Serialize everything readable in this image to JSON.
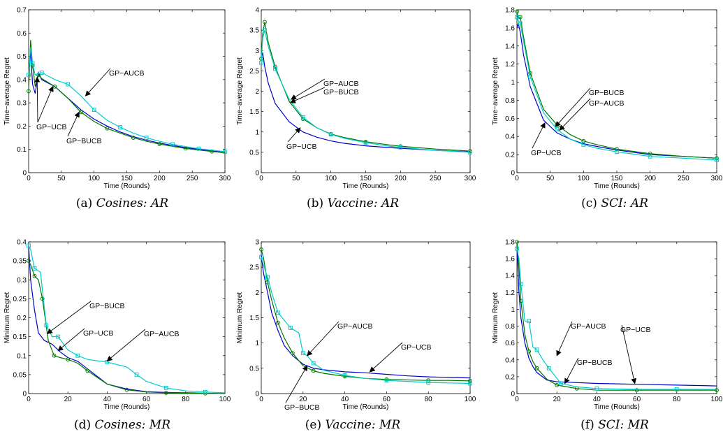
{
  "chart_data": [
    {
      "type": "line",
      "caption": {
        "label": "(a)",
        "title": "Cosines: AR"
      },
      "xlabel": "Time (Rounds)",
      "ylabel": "Time−average Regret",
      "xlim": [
        0,
        300
      ],
      "ylim": [
        0,
        0.7
      ],
      "xticks": [
        0,
        50,
        100,
        150,
        200,
        250,
        300
      ],
      "yticks": [
        0,
        0.1,
        0.2,
        0.3,
        0.4,
        0.5,
        0.6,
        0.7
      ],
      "series": [
        {
          "name": "GP−UCB",
          "color": "#0000cc",
          "marker": "none",
          "x": [
            0,
            3,
            6,
            10,
            15,
            20,
            40,
            60,
            80,
            100,
            120,
            140,
            160,
            180,
            200,
            220,
            240,
            260,
            280,
            300
          ],
          "y": [
            0.42,
            0.52,
            0.38,
            0.34,
            0.43,
            0.4,
            0.37,
            0.32,
            0.27,
            0.23,
            0.2,
            0.175,
            0.155,
            0.14,
            0.127,
            0.117,
            0.108,
            0.1,
            0.093,
            0.087
          ]
        },
        {
          "name": "GP−BUCB",
          "color": "#007700",
          "marker": "circle",
          "x": [
            0,
            3,
            6,
            10,
            15,
            20,
            40,
            60,
            80,
            100,
            120,
            140,
            160,
            180,
            200,
            220,
            240,
            260,
            280,
            300
          ],
          "y": [
            0.35,
            0.57,
            0.46,
            0.37,
            0.42,
            0.405,
            0.37,
            0.32,
            0.26,
            0.22,
            0.19,
            0.17,
            0.15,
            0.135,
            0.123,
            0.113,
            0.104,
            0.097,
            0.091,
            0.085
          ]
        },
        {
          "name": "GP−AUCB",
          "color": "#00cccc",
          "marker": "square",
          "x": [
            0,
            3,
            6,
            10,
            20,
            40,
            60,
            80,
            100,
            120,
            140,
            160,
            180,
            200,
            220,
            240,
            260,
            280,
            300
          ],
          "y": [
            0.42,
            0.54,
            0.47,
            0.42,
            0.43,
            0.4,
            0.38,
            0.33,
            0.27,
            0.225,
            0.195,
            0.17,
            0.15,
            0.135,
            0.122,
            0.112,
            0.103,
            0.097,
            0.09
          ]
        }
      ],
      "annotations": [
        {
          "text": "GP−AUCB",
          "target": [
            87,
            0.33
          ]
        },
        {
          "text": "GP−UCB",
          "target": [
            13,
            0.41
          ]
        },
        {
          "text": "GP−UCB",
          "target": [
            37,
            0.37
          ]
        },
        {
          "text": "GP−BUCB",
          "target": [
            77,
            0.26
          ]
        }
      ]
    },
    {
      "type": "line",
      "caption": {
        "label": "(b)",
        "title": "Vaccine: AR"
      },
      "xlabel": "Time (Rounds)",
      "ylabel": "Time−average Regret",
      "xlim": [
        0,
        300
      ],
      "ylim": [
        0,
        4
      ],
      "xticks": [
        0,
        50,
        100,
        150,
        200,
        250,
        300
      ],
      "yticks": [
        0,
        0.5,
        1,
        1.5,
        2,
        2.5,
        3,
        3.5,
        4
      ],
      "series": [
        {
          "name": "GP−UCB",
          "color": "#0000cc",
          "marker": "none",
          "x": [
            0,
            2,
            5,
            10,
            20,
            40,
            60,
            80,
            100,
            120,
            150,
            180,
            200,
            250,
            300
          ],
          "y": [
            2.8,
            2.95,
            2.6,
            2.2,
            1.7,
            1.25,
            1.0,
            0.87,
            0.78,
            0.72,
            0.66,
            0.62,
            0.6,
            0.55,
            0.51
          ]
        },
        {
          "name": "GP−BUCB",
          "color": "#007700",
          "marker": "circle",
          "x": [
            0,
            2,
            5,
            10,
            20,
            40,
            60,
            80,
            100,
            120,
            150,
            180,
            200,
            250,
            300
          ],
          "y": [
            2.8,
            3.4,
            3.7,
            3.2,
            2.6,
            1.75,
            1.32,
            1.1,
            0.95,
            0.86,
            0.76,
            0.69,
            0.65,
            0.58,
            0.53
          ]
        },
        {
          "name": "GP−AUCB",
          "color": "#00cccc",
          "marker": "square",
          "x": [
            0,
            2,
            5,
            10,
            20,
            40,
            60,
            80,
            100,
            120,
            150,
            180,
            200,
            250,
            300
          ],
          "y": [
            2.7,
            3.3,
            3.5,
            3.1,
            2.55,
            1.8,
            1.36,
            1.1,
            0.94,
            0.84,
            0.74,
            0.66,
            0.62,
            0.55,
            0.5
          ]
        }
      ],
      "annotations": [
        {
          "text": "GP−AUCB",
          "target": [
            43,
            1.8
          ]
        },
        {
          "text": "GP−BUCB",
          "target": [
            42,
            1.72
          ]
        },
        {
          "text": "GP−UCB",
          "target": [
            56,
            1.1
          ]
        }
      ]
    },
    {
      "type": "line",
      "caption": {
        "label": "(c)",
        "title": "SCI: AR"
      },
      "xlabel": "Time (Rounds)",
      "ylabel": "Time−average Regret",
      "xlim": [
        0,
        300
      ],
      "ylim": [
        0,
        1.8
      ],
      "xticks": [
        0,
        50,
        100,
        150,
        200,
        250,
        300
      ],
      "yticks": [
        0,
        0.2,
        0.4,
        0.6,
        0.8,
        1,
        1.2,
        1.4,
        1.6,
        1.8
      ],
      "series": [
        {
          "name": "GP−UCB",
          "color": "#0000cc",
          "marker": "none",
          "x": [
            0,
            2,
            5,
            10,
            20,
            40,
            60,
            80,
            100,
            120,
            150,
            180,
            200,
            250,
            300
          ],
          "y": [
            1.6,
            1.65,
            1.55,
            1.3,
            0.95,
            0.58,
            0.44,
            0.37,
            0.32,
            0.29,
            0.25,
            0.22,
            0.2,
            0.18,
            0.16
          ]
        },
        {
          "name": "GP−BUCB",
          "color": "#007700",
          "marker": "circle",
          "x": [
            0,
            2,
            5,
            10,
            20,
            40,
            60,
            80,
            100,
            120,
            150,
            180,
            200,
            250,
            300
          ],
          "y": [
            1.78,
            1.7,
            1.72,
            1.5,
            1.1,
            0.7,
            0.53,
            0.42,
            0.35,
            0.31,
            0.26,
            0.23,
            0.21,
            0.18,
            0.16
          ]
        },
        {
          "name": "GP−AUCB",
          "color": "#00cccc",
          "marker": "square",
          "x": [
            0,
            2,
            5,
            10,
            20,
            40,
            60,
            80,
            100,
            120,
            150,
            180,
            200,
            250,
            300
          ],
          "y": [
            1.72,
            1.68,
            1.65,
            1.45,
            1.06,
            0.66,
            0.48,
            0.37,
            0.31,
            0.27,
            0.23,
            0.2,
            0.18,
            0.16,
            0.14
          ]
        }
      ],
      "annotations": [
        {
          "text": "GP−BUCB",
          "target": [
            58,
            0.51
          ]
        },
        {
          "text": "GP−AUCB",
          "target": [
            64,
            0.47
          ]
        },
        {
          "text": "GP−UCB",
          "target": [
            42,
            0.55
          ]
        }
      ]
    },
    {
      "type": "line",
      "caption": {
        "label": "(d)",
        "title": "Cosines: MR"
      },
      "xlabel": "Time (Rounds)",
      "ylabel": "Minimum Regret",
      "xlim": [
        0,
        100
      ],
      "ylim": [
        0,
        0.4
      ],
      "xticks": [
        0,
        20,
        40,
        60,
        80,
        100
      ],
      "yticks": [
        0,
        0.05,
        0.1,
        0.15,
        0.2,
        0.25,
        0.3,
        0.35,
        0.4
      ],
      "series": [
        {
          "name": "GP−UCB",
          "color": "#0000cc",
          "marker": "none",
          "x": [
            0,
            1,
            3,
            5,
            8,
            12,
            16,
            20,
            25,
            30,
            40,
            50,
            60,
            70,
            80,
            90,
            100
          ],
          "y": [
            0.39,
            0.3,
            0.22,
            0.16,
            0.14,
            0.13,
            0.11,
            0.095,
            0.085,
            0.065,
            0.025,
            0.012,
            0.005,
            0.003,
            0.002,
            0.001,
            0.0
          ]
        },
        {
          "name": "GP−BUCB",
          "color": "#007700",
          "marker": "circle",
          "x": [
            0,
            1,
            3,
            5,
            7,
            10,
            13,
            16,
            20,
            25,
            30,
            40,
            50,
            60,
            70,
            80,
            90,
            100
          ],
          "y": [
            0.35,
            0.34,
            0.31,
            0.3,
            0.25,
            0.14,
            0.1,
            0.095,
            0.09,
            0.08,
            0.06,
            0.025,
            0.01,
            0.004,
            0.002,
            0.001,
            0.0005,
            0.0
          ]
        },
        {
          "name": "GP−AUCB",
          "color": "#00cccc",
          "marker": "square",
          "x": [
            0,
            1,
            3,
            6,
            9,
            12,
            15,
            20,
            25,
            30,
            40,
            50,
            55,
            60,
            70,
            80,
            90,
            100
          ],
          "y": [
            0.39,
            0.38,
            0.33,
            0.32,
            0.18,
            0.15,
            0.15,
            0.115,
            0.1,
            0.09,
            0.083,
            0.07,
            0.05,
            0.032,
            0.015,
            0.007,
            0.004,
            0.002
          ]
        }
      ],
      "annotations": [
        {
          "text": "GP−BUCB",
          "target": [
            9.5,
            0.158
          ]
        },
        {
          "text": "GP−UCB",
          "target": [
            15,
            0.113
          ]
        },
        {
          "text": "GP−AUCB",
          "target": [
            40,
            0.086
          ]
        }
      ]
    },
    {
      "type": "line",
      "caption": {
        "label": "(e)",
        "title": "Vaccine: MR"
      },
      "xlabel": "Time (Rounds)",
      "ylabel": "Minimum Regret",
      "xlim": [
        0,
        100
      ],
      "ylim": [
        0,
        3
      ],
      "xticks": [
        0,
        20,
        40,
        60,
        80,
        100
      ],
      "yticks": [
        0,
        0.5,
        1,
        1.5,
        2,
        2.5,
        3
      ],
      "series": [
        {
          "name": "GP−UCB",
          "color": "#0000cc",
          "marker": "none",
          "x": [
            0,
            1,
            3,
            5,
            8,
            11,
            15,
            20,
            25,
            30,
            40,
            50,
            60,
            70,
            80,
            90,
            100
          ],
          "y": [
            2.75,
            2.4,
            2.0,
            1.6,
            1.25,
            0.95,
            0.75,
            0.58,
            0.5,
            0.47,
            0.43,
            0.41,
            0.38,
            0.35,
            0.33,
            0.32,
            0.31
          ]
        },
        {
          "name": "GP−BUCB",
          "color": "#007700",
          "marker": "circle",
          "x": [
            0,
            1,
            3,
            5,
            8,
            11,
            15,
            20,
            25,
            30,
            40,
            50,
            60,
            70,
            80,
            90,
            100
          ],
          "y": [
            2.85,
            2.7,
            2.2,
            1.85,
            1.4,
            1.1,
            0.8,
            0.55,
            0.45,
            0.4,
            0.34,
            0.3,
            0.28,
            0.27,
            0.26,
            0.26,
            0.25
          ]
        },
        {
          "name": "GP−AUCB",
          "color": "#00cccc",
          "marker": "square",
          "x": [
            0,
            1,
            3,
            5,
            8,
            11,
            14,
            18,
            20,
            22,
            25,
            30,
            40,
            50,
            60,
            70,
            80,
            90,
            100
          ],
          "y": [
            2.7,
            2.55,
            2.3,
            2.0,
            1.6,
            1.45,
            1.3,
            1.2,
            0.8,
            0.75,
            0.6,
            0.46,
            0.36,
            0.3,
            0.26,
            0.24,
            0.22,
            0.21,
            0.2
          ]
        }
      ],
      "annotations": [
        {
          "text": "GP−AUCB",
          "target": [
            22,
            0.75
          ]
        },
        {
          "text": "GP−UCB",
          "target": [
            52,
            0.43
          ]
        },
        {
          "text": "GP−BUCB",
          "target": [
            22,
            0.55
          ]
        }
      ]
    },
    {
      "type": "line",
      "caption": {
        "label": "(f)",
        "title": "SCI: MR"
      },
      "xlabel": "Time (Rounds)",
      "ylabel": "Minimum Regret",
      "xlim": [
        0,
        100
      ],
      "ylim": [
        0,
        1.8
      ],
      "xticks": [
        0,
        20,
        40,
        60,
        80,
        100
      ],
      "yticks": [
        0,
        0.2,
        0.4,
        0.6,
        0.8,
        1,
        1.2,
        1.4,
        1.6,
        1.8
      ],
      "series": [
        {
          "name": "GP−UCB",
          "color": "#0000cc",
          "marker": "none",
          "x": [
            0,
            1,
            2,
            4,
            6,
            8,
            10,
            15,
            20,
            30,
            40,
            60,
            80,
            100
          ],
          "y": [
            1.78,
            1.2,
            0.9,
            0.6,
            0.42,
            0.32,
            0.25,
            0.16,
            0.14,
            0.13,
            0.12,
            0.11,
            0.1,
            0.09
          ]
        },
        {
          "name": "GP−BUCB",
          "color": "#007700",
          "marker": "circle",
          "x": [
            0,
            1,
            2,
            4,
            6,
            8,
            10,
            15,
            20,
            25,
            30,
            40,
            60,
            80,
            100
          ],
          "y": [
            1.8,
            1.5,
            1.1,
            0.7,
            0.5,
            0.38,
            0.3,
            0.17,
            0.1,
            0.08,
            0.06,
            0.04,
            0.04,
            0.04,
            0.04
          ]
        },
        {
          "name": "GP−AUCB",
          "color": "#00cccc",
          "marker": "square",
          "x": [
            0,
            1,
            2,
            4,
            6,
            8,
            10,
            13,
            16,
            20,
            22,
            30,
            40,
            60,
            80,
            100
          ],
          "y": [
            1.72,
            1.6,
            1.3,
            0.86,
            0.86,
            0.55,
            0.52,
            0.4,
            0.3,
            0.18,
            0.12,
            0.08,
            0.06,
            0.05,
            0.05,
            0.05
          ]
        }
      ],
      "annotations": [
        {
          "text": "GP−AUCB",
          "target": [
            20,
            0.45
          ]
        },
        {
          "text": "GP−UCB",
          "target": [
            59,
            0.12
          ]
        },
        {
          "text": "GP−BUCB",
          "target": [
            24,
            0.12
          ]
        }
      ]
    }
  ]
}
